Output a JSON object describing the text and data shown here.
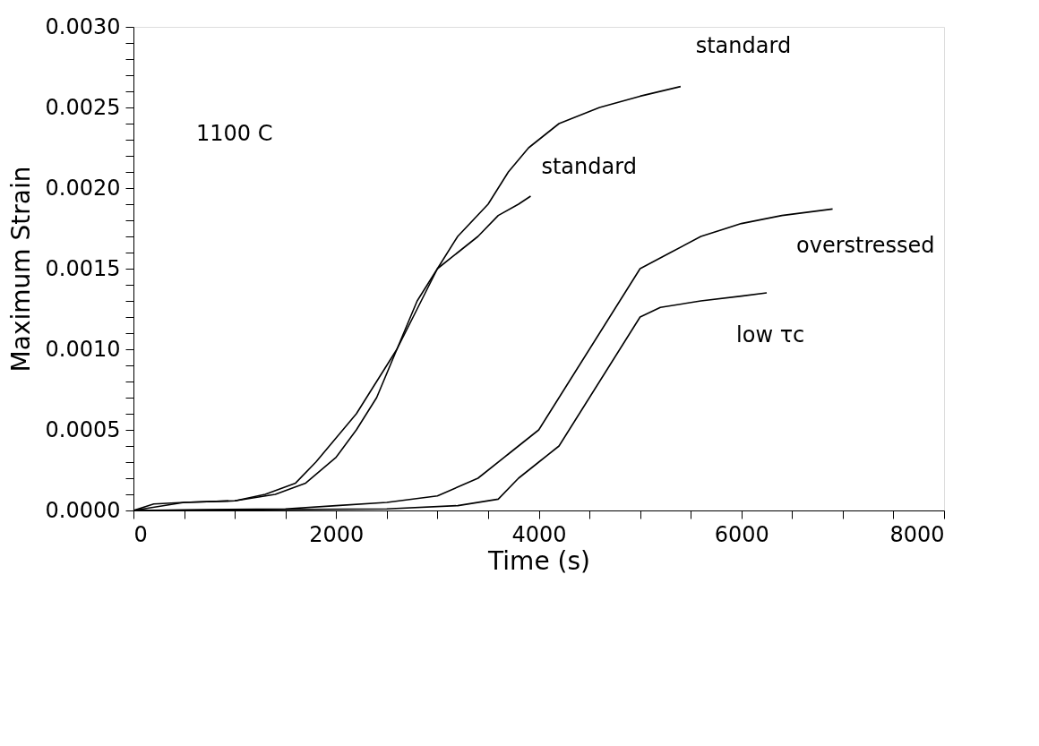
{
  "chart_data": {
    "type": "line",
    "xlabel": "Time (s)",
    "ylabel": "Maximum Strain",
    "annotations": [
      "1100 C"
    ],
    "xlim": [
      0,
      8000
    ],
    "ylim": [
      0,
      0.003
    ],
    "xticks": [
      0,
      {
        "value": 500,
        "label": null
      },
      {
        "value": 1000,
        "label": null
      },
      {
        "value": 1500,
        "label": null
      },
      2000,
      {
        "value": 2500,
        "label": null
      },
      {
        "value": 3000,
        "label": null
      },
      {
        "value": 3500,
        "label": null
      },
      4000,
      {
        "value": 4500,
        "label": null
      },
      {
        "value": 5000,
        "label": null
      },
      {
        "value": 5500,
        "label": null
      },
      6000,
      {
        "value": 6500,
        "label": null
      },
      {
        "value": 7000,
        "label": null
      },
      {
        "value": 7500,
        "label": null
      },
      8000
    ],
    "yticks": [
      {
        "value": 0,
        "label": "0.0000"
      },
      {
        "value": 0.0001,
        "label": null
      },
      {
        "value": 0.0002,
        "label": null
      },
      {
        "value": 0.0003,
        "label": null
      },
      {
        "value": 0.0004,
        "label": null
      },
      0.0005,
      {
        "value": 0.0006,
        "label": null
      },
      {
        "value": 0.0007,
        "label": null
      },
      {
        "value": 0.0008,
        "label": null
      },
      {
        "value": 0.0009,
        "label": null
      },
      {
        "value": 0.001,
        "label": "0.0010"
      },
      {
        "value": 0.0011,
        "label": null
      },
      {
        "value": 0.0012,
        "label": null
      },
      {
        "value": 0.0013,
        "label": null
      },
      {
        "value": 0.0014,
        "label": null
      },
      0.0015,
      {
        "value": 0.0016,
        "label": null
      },
      {
        "value": 0.0017,
        "label": null
      },
      {
        "value": 0.0018,
        "label": null
      },
      {
        "value": 0.0019,
        "label": null
      },
      {
        "value": 0.002,
        "label": "0.0020"
      },
      {
        "value": 0.0021,
        "label": null
      },
      {
        "value": 0.0022,
        "label": null
      },
      {
        "value": 0.0023,
        "label": null
      },
      {
        "value": 0.0024,
        "label": null
      },
      0.0025,
      {
        "value": 0.0026,
        "label": null
      },
      {
        "value": 0.0027,
        "label": null
      },
      {
        "value": 0.0028,
        "label": null
      },
      {
        "value": 0.0029,
        "label": null
      },
      {
        "value": 0.003,
        "label": "0.0030"
      }
    ],
    "grid": false,
    "marker": "none",
    "line_style": "solid",
    "series": [
      {
        "name": "standard",
        "color": "#000000",
        "x": [
          0,
          200,
          500,
          1000,
          1300,
          1600,
          1800,
          2000,
          2200,
          2400,
          2600,
          2800,
          3000,
          3200,
          3500,
          3700,
          3900,
          4200,
          4600,
          5000,
          5400
        ],
        "values": [
          0,
          4e-05,
          5e-05,
          6e-05,
          0.0001,
          0.00017,
          0.0003,
          0.00045,
          0.0006,
          0.0008,
          0.001,
          0.00125,
          0.0015,
          0.0017,
          0.0019,
          0.0021,
          0.00225,
          0.0024,
          0.0025,
          0.00257,
          0.00263
        ]
      },
      {
        "name": "standard",
        "color": "#000000",
        "x": [
          0,
          500,
          1000,
          1400,
          1700,
          2000,
          2200,
          2400,
          2600,
          2800,
          3000,
          3200,
          3400,
          3600,
          3800,
          3920
        ],
        "values": [
          0,
          5e-05,
          6e-05,
          0.0001,
          0.00017,
          0.00033,
          0.0005,
          0.0007,
          0.001,
          0.0013,
          0.0015,
          0.0016,
          0.0017,
          0.00183,
          0.0019,
          0.00195
        ]
      },
      {
        "name": "overstressed",
        "color": "#000000",
        "x": [
          0,
          1500,
          2000,
          2500,
          3000,
          3400,
          3700,
          4000,
          4200,
          4400,
          4600,
          4800,
          5000,
          5300,
          5600,
          6000,
          6400,
          6900
        ],
        "values": [
          0,
          1e-05,
          3e-05,
          5e-05,
          9e-05,
          0.0002,
          0.00035,
          0.0005,
          0.0007,
          0.0009,
          0.0011,
          0.0013,
          0.0015,
          0.0016,
          0.0017,
          0.00178,
          0.00183,
          0.00187
        ]
      },
      {
        "name": "low τc",
        "color": "#000000",
        "x": [
          0,
          2500,
          3200,
          3600,
          3800,
          4000,
          4200,
          4400,
          4600,
          4800,
          5000,
          5200,
          5600,
          6000,
          6250
        ],
        "values": [
          0,
          1e-05,
          3e-05,
          7e-05,
          0.0002,
          0.0003,
          0.0004,
          0.0006,
          0.0008,
          0.001,
          0.0012,
          0.00126,
          0.0013,
          0.00133,
          0.00135
        ]
      }
    ]
  }
}
